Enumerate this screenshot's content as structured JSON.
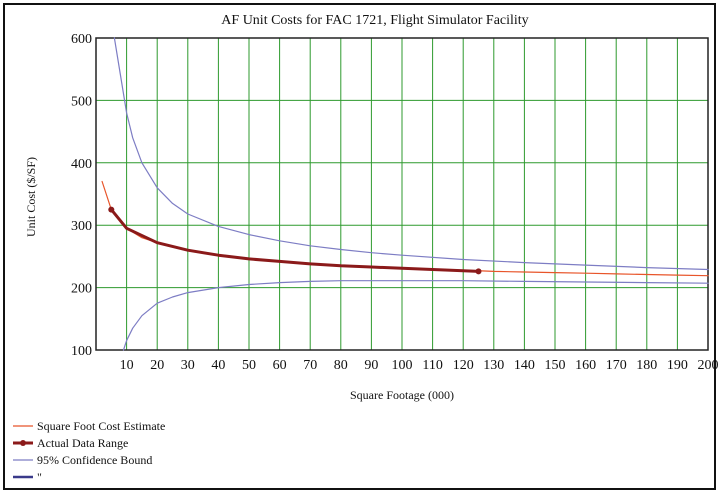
{
  "chart_data": {
    "type": "line",
    "title": "AF Unit Costs for FAC 1721, Flight Simulator Facility",
    "xlabel": "Square Footage (000)",
    "ylabel": "Unit Cost ($/SF)",
    "xlim": [
      0,
      200
    ],
    "ylim": [
      100,
      600
    ],
    "xticks": [
      10,
      20,
      30,
      40,
      50,
      60,
      70,
      80,
      90,
      100,
      110,
      120,
      130,
      140,
      150,
      160,
      170,
      180,
      190,
      200
    ],
    "yticks": [
      100,
      200,
      300,
      400,
      500,
      600
    ],
    "grid": true,
    "legend_position": "bottom-left",
    "series": [
      {
        "name": "Square Foot Cost Estimate",
        "color": "#e8552a",
        "style": "line",
        "x": [
          2,
          5,
          10,
          15,
          20,
          30,
          40,
          50,
          60,
          70,
          80,
          90,
          100,
          110,
          120,
          130,
          140,
          150,
          160,
          170,
          180,
          190,
          200
        ],
        "y": [
          370,
          325,
          295,
          280,
          272,
          260,
          252,
          246,
          242,
          238,
          235,
          233,
          231,
          229,
          228,
          226,
          225,
          224,
          223,
          222,
          221,
          220,
          219
        ]
      },
      {
        "name": "Actual Data Range",
        "color": "#8b1a1a",
        "style": "line-markers",
        "x": [
          5,
          10,
          20,
          30,
          40,
          50,
          60,
          70,
          80,
          90,
          100,
          110,
          125
        ],
        "y": [
          325,
          295,
          272,
          260,
          252,
          246,
          242,
          238,
          235,
          233,
          231,
          229,
          226
        ]
      },
      {
        "name": "95% Confidence Bound",
        "color": "#7d7dc4",
        "style": "line",
        "x": [
          6,
          8,
          10,
          12,
          15,
          20,
          25,
          30,
          40,
          50,
          60,
          70,
          80,
          90,
          100,
          120,
          140,
          160,
          180,
          200
        ],
        "y": [
          600,
          540,
          480,
          440,
          400,
          360,
          335,
          318,
          298,
          285,
          275,
          267,
          261,
          256,
          252,
          245,
          240,
          236,
          232,
          229
        ]
      },
      {
        "name": "",
        "color": "#7d7dc4",
        "style": "line",
        "x": [
          9,
          10,
          12,
          15,
          20,
          25,
          30,
          40,
          50,
          60,
          70,
          80,
          90,
          100,
          120,
          140,
          160,
          180,
          200
        ],
        "y": [
          100,
          115,
          135,
          155,
          175,
          185,
          192,
          200,
          205,
          208,
          210,
          211,
          211,
          211,
          211,
          210,
          209,
          208,
          207
        ]
      }
    ],
    "legend": [
      {
        "label": "Square Foot Cost Estimate",
        "color": "#e8552a",
        "marker": "line"
      },
      {
        "label": "Actual Data Range",
        "color": "#8b1a1a",
        "marker": "line-dot"
      },
      {
        "label": "95% Confidence Bound",
        "color": "#7d7dc4",
        "marker": "line"
      },
      {
        "label": "\"",
        "color": "#3a3a8a",
        "marker": "thick-line"
      }
    ]
  }
}
